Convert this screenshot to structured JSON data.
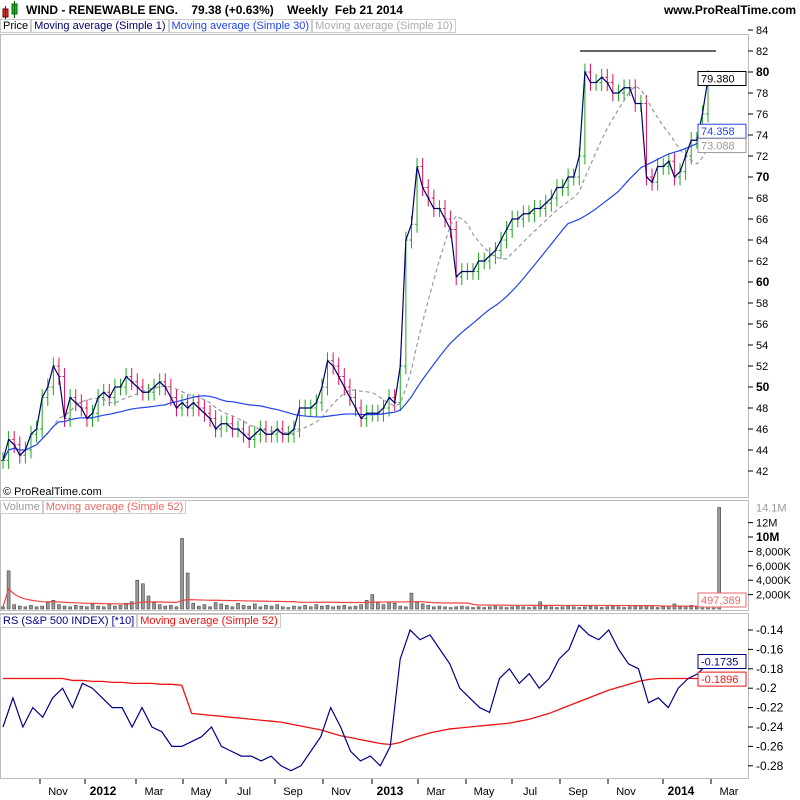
{
  "header": {
    "title": "WIND - RENEWABLE ENG.",
    "price": "79.38 (+0.63%)",
    "period": "Weekly",
    "date": "Feb 21 2014",
    "site": "www.ProRealTime.com"
  },
  "price_legend": [
    "Price",
    "Moving average (Simple 1)",
    "Moving average (Simple 30)",
    "Moving average (Simple 10)"
  ],
  "volume_legend": [
    "Volume",
    "Moving average (Simple 52)"
  ],
  "rs_legend": [
    "RS (S&P 500 INDEX) [*10]",
    "Moving average (Simple 52)"
  ],
  "copyright": "© ProRealTime.com",
  "colors": {
    "up": "#1fa51f",
    "down": "#e0105a",
    "ma1": "#00006e",
    "ma30": "#2244ee",
    "ma10": "#aaaaaa",
    "rs": "#00008b",
    "rs_ma": "#ee1111",
    "vol_ma": "#ee4444"
  },
  "chart_data": [
    {
      "type": "bar",
      "panel": "price",
      "ylim": [
        41,
        85
      ],
      "yticks": [
        42,
        44,
        46,
        48,
        50,
        52,
        54,
        56,
        58,
        60,
        62,
        64,
        66,
        68,
        70,
        72,
        74,
        76,
        78,
        80,
        82,
        84
      ],
      "closes": [
        43,
        45,
        44.5,
        43.5,
        44,
        45.5,
        46,
        49,
        50,
        52,
        51,
        47,
        49,
        48.5,
        48,
        47,
        47.5,
        49,
        49.5,
        49,
        50,
        50,
        51,
        50.5,
        50,
        49.5,
        49.5,
        50,
        50.5,
        50,
        49,
        48,
        48.5,
        48,
        48.5,
        48,
        47.5,
        47,
        46,
        46.5,
        46.5,
        46,
        46,
        45.5,
        45,
        45.5,
        46,
        45.5,
        45.5,
        46,
        45.5,
        45.5,
        46,
        48,
        48,
        48,
        48.5,
        50,
        52.5,
        52,
        51,
        50,
        49,
        48,
        47,
        47.5,
        47.5,
        47.5,
        48,
        49,
        48.5,
        52,
        64,
        65.5,
        71,
        69,
        68,
        67,
        67,
        66,
        65,
        60.5,
        61,
        61,
        61,
        62,
        62,
        62.5,
        63,
        64,
        65,
        66,
        66,
        66.5,
        66.5,
        67,
        67,
        67.5,
        68,
        69,
        69,
        70,
        70,
        72,
        80,
        79,
        79,
        79.5,
        79,
        78,
        78,
        78.5,
        78.5,
        77,
        77,
        70,
        69.5,
        71,
        71,
        71.5,
        70,
        70.5,
        72,
        73.5,
        73.5,
        76,
        79.38
      ],
      "last_labels": {
        "price": "79.380",
        "ma30": "74.358",
        "ma10": "73.088"
      },
      "resistance": 82
    },
    {
      "type": "bar",
      "panel": "volume",
      "ytick_labels": [
        "14.1M",
        "12M",
        "10M",
        "8,000K",
        "6,000K",
        "4,000K",
        "2,000K"
      ],
      "ma_label": "497,389",
      "values_k": [
        300,
        5300,
        600,
        400,
        300,
        500,
        300,
        400,
        900,
        1200,
        600,
        400,
        300,
        500,
        400,
        300,
        700,
        400,
        300,
        600,
        400,
        500,
        800,
        1000,
        4000,
        3500,
        1800,
        900,
        600,
        400,
        500,
        300,
        9800,
        5000,
        800,
        400,
        600,
        300,
        900,
        700,
        500,
        300,
        800,
        500,
        400,
        700,
        300,
        500,
        400,
        600,
        300,
        200,
        400,
        300,
        500,
        300,
        600,
        400,
        500,
        300,
        400,
        500,
        300,
        400,
        600,
        1200,
        2000,
        900,
        600,
        1000,
        800,
        400,
        300,
        2200,
        900,
        700,
        500,
        300,
        400,
        300,
        200,
        300,
        400,
        300,
        200,
        300,
        200,
        300,
        400,
        300,
        200,
        300,
        400,
        300,
        200,
        300,
        1000,
        400,
        300,
        200,
        300,
        400,
        300,
        200,
        300,
        400,
        300,
        200,
        300,
        400,
        300,
        200,
        300,
        400,
        300,
        400,
        300,
        200,
        300,
        400,
        700,
        300,
        400,
        500,
        300,
        600,
        700,
        800,
        14100
      ]
    },
    {
      "type": "line",
      "panel": "rs",
      "ylim": [
        -0.29,
        -0.125
      ],
      "yticks": [
        -0.14,
        -0.16,
        -0.18,
        -0.2,
        -0.22,
        -0.24,
        -0.26,
        -0.28
      ],
      "last_labels": {
        "rs": "-0.1735",
        "ma": "-0.1896"
      },
      "rs": [
        -0.24,
        -0.21,
        -0.24,
        -0.22,
        -0.23,
        -0.21,
        -0.2,
        -0.22,
        -0.195,
        -0.2,
        -0.21,
        -0.22,
        -0.22,
        -0.24,
        -0.22,
        -0.24,
        -0.245,
        -0.26,
        -0.26,
        -0.255,
        -0.25,
        -0.24,
        -0.26,
        -0.265,
        -0.27,
        -0.27,
        -0.275,
        -0.27,
        -0.28,
        -0.285,
        -0.28,
        -0.265,
        -0.25,
        -0.22,
        -0.24,
        -0.265,
        -0.275,
        -0.27,
        -0.28,
        -0.26,
        -0.17,
        -0.14,
        -0.15,
        -0.145,
        -0.16,
        -0.175,
        -0.2,
        -0.21,
        -0.22,
        -0.225,
        -0.19,
        -0.18,
        -0.195,
        -0.185,
        -0.2,
        -0.19,
        -0.17,
        -0.16,
        -0.135,
        -0.145,
        -0.15,
        -0.14,
        -0.16,
        -0.175,
        -0.18,
        -0.215,
        -0.21,
        -0.22,
        -0.2,
        -0.19,
        -0.185,
        -0.1735
      ],
      "ma": [
        -0.19,
        -0.19,
        -0.19,
        -0.19,
        -0.19,
        -0.19,
        -0.19,
        -0.192,
        -0.192,
        -0.193,
        -0.193,
        -0.194,
        -0.194,
        -0.195,
        -0.195,
        -0.195,
        -0.196,
        -0.196,
        -0.197,
        -0.226,
        -0.227,
        -0.228,
        -0.229,
        -0.23,
        -0.231,
        -0.232,
        -0.233,
        -0.234,
        -0.235,
        -0.237,
        -0.239,
        -0.241,
        -0.243,
        -0.246,
        -0.249,
        -0.251,
        -0.253,
        -0.255,
        -0.257,
        -0.258,
        -0.256,
        -0.252,
        -0.249,
        -0.246,
        -0.244,
        -0.242,
        -0.241,
        -0.24,
        -0.239,
        -0.238,
        -0.237,
        -0.236,
        -0.234,
        -0.232,
        -0.229,
        -0.226,
        -0.222,
        -0.218,
        -0.214,
        -0.21,
        -0.206,
        -0.202,
        -0.199,
        -0.196,
        -0.193,
        -0.191,
        -0.19,
        -0.19,
        -0.19,
        -0.19,
        -0.19,
        -0.1896
      ]
    },
    {
      "type": "axis",
      "panel": "time",
      "labels": [
        {
          "t": "Nov",
          "bold": false
        },
        {
          "t": "2012",
          "bold": true
        },
        {
          "t": "Mar",
          "bold": false
        },
        {
          "t": "May",
          "bold": false
        },
        {
          "t": "Jul",
          "bold": false
        },
        {
          "t": "Sep",
          "bold": false
        },
        {
          "t": "Nov",
          "bold": false
        },
        {
          "t": "2013",
          "bold": true
        },
        {
          "t": "Mar",
          "bold": false
        },
        {
          "t": "May",
          "bold": false
        },
        {
          "t": "Jul",
          "bold": false
        },
        {
          "t": "Sep",
          "bold": false
        },
        {
          "t": "Nov",
          "bold": false
        },
        {
          "t": "2014",
          "bold": true
        },
        {
          "t": "Mar",
          "bold": false
        }
      ]
    }
  ]
}
